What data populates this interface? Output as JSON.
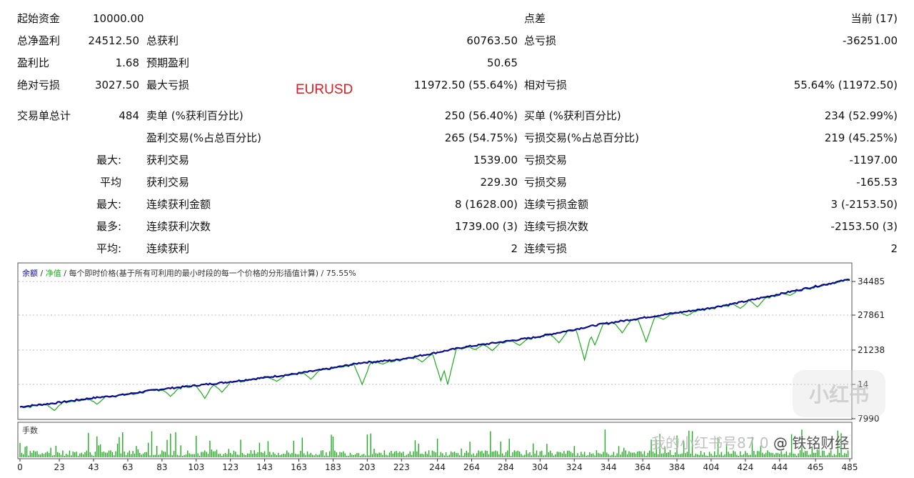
{
  "stats": {
    "initial_deposit": {
      "label": "起始资金",
      "value": "10000.00"
    },
    "spread": {
      "label": "点差",
      "value": "当前 (17)"
    },
    "total_net_profit": {
      "label": "总净盈利",
      "value": "24512.50"
    },
    "gross_profit": {
      "label": "总获利",
      "value": "60763.50"
    },
    "gross_loss": {
      "label": "总亏损",
      "value": "-36251.00"
    },
    "profit_factor": {
      "label": "盈利比",
      "value": "1.68"
    },
    "expected_payoff": {
      "label": "预期盈利",
      "value": "50.65"
    },
    "absolute_drawdown": {
      "label": "绝对亏损",
      "value": "3027.50"
    },
    "maximal_drawdown": {
      "label": "最大亏损",
      "value": "11972.50 (55.64%)"
    },
    "relative_drawdown": {
      "label": "相对亏损",
      "value": "55.64% (11972.50)"
    },
    "total_trades": {
      "label": "交易单总计",
      "value": "484"
    },
    "short_positions": {
      "label": "卖单 (%获利百分比)",
      "value": "250 (56.40%)"
    },
    "long_positions": {
      "label": "买单 (%获利百分比)",
      "value": "234 (52.99%)"
    },
    "profit_trades": {
      "label": "盈利交易(%占总百分比)",
      "value": "265 (54.75%)"
    },
    "loss_trades": {
      "label": "亏损交易(%占总百分比)",
      "value": "219 (45.25%)"
    },
    "largest": {
      "label": "最大:",
      "profit_label": "获利交易",
      "profit": "1539.00",
      "loss_label": "亏损交易",
      "loss": "-1197.00"
    },
    "average": {
      "label": "平均",
      "profit_label": "获利交易",
      "profit": "229.30",
      "loss_label": "亏损交易",
      "loss": "-165.53"
    },
    "max_consec": {
      "label": "最大:",
      "wins_label": "连续获利金额",
      "wins": "8 (1628.00)",
      "losses_label": "连续亏损金额",
      "losses": "3 (-2153.50)"
    },
    "maximal_consec": {
      "label": "最多:",
      "profit_label": "连续获利次数",
      "profit": "1739.00 (3)",
      "loss_label": "连续亏损次数",
      "loss": "-2153.50 (3)"
    },
    "avg_consec": {
      "label": "平均:",
      "wins_label": "连续获利",
      "wins": "2",
      "losses_label": "连续亏损",
      "losses": "2"
    }
  },
  "symbol": "EURUSD",
  "chart_data": [
    {
      "type": "line",
      "legend": {
        "balance": "余额",
        "sep1": "/",
        "equity": "净值",
        "sep2": "/",
        "desc": "每个即时价格(基于所有可利用的最小时段的每一个价格的分形插值计算)",
        "sep3": "/",
        "quality": "75.55%"
      },
      "y_ticks": [
        34485,
        27861,
        21238,
        "14",
        7990
      ],
      "ylim": [
        7990,
        36000
      ],
      "xlim": [
        0,
        485
      ],
      "colors": {
        "balance": "#0a0a8c",
        "equity": "#1faa1f"
      },
      "series": [
        {
          "name": "余额",
          "points": [
            [
              0,
              10000
            ],
            [
              20,
              10700
            ],
            [
              40,
              11600
            ],
            [
              60,
              12300
            ],
            [
              80,
              13300
            ],
            [
              100,
              14000
            ],
            [
              120,
              14700
            ],
            [
              140,
              15500
            ],
            [
              160,
              16300
            ],
            [
              180,
              17300
            ],
            [
              200,
              18500
            ],
            [
              220,
              19000
            ],
            [
              240,
              20200
            ],
            [
              260,
              21500
            ],
            [
              280,
              22400
            ],
            [
              300,
              23300
            ],
            [
              320,
              24600
            ],
            [
              340,
              25900
            ],
            [
              360,
              26900
            ],
            [
              380,
              27900
            ],
            [
              400,
              28800
            ],
            [
              420,
              30000
            ],
            [
              440,
              31400
            ],
            [
              460,
              32800
            ],
            [
              485,
              34500
            ]
          ]
        },
        {
          "name": "净值",
          "dips": [
            [
              20,
              9300
            ],
            [
              45,
              10500
            ],
            [
              88,
              12000
            ],
            [
              108,
              11600
            ],
            [
              118,
              12800
            ],
            [
              150,
              14900
            ],
            [
              170,
              15300
            ],
            [
              187,
              17600
            ],
            [
              200,
              14300
            ],
            [
              212,
              18200
            ],
            [
              235,
              18600
            ],
            [
              246,
              15000
            ],
            [
              250,
              14300
            ],
            [
              266,
              21000
            ],
            [
              276,
              20800
            ],
            [
              292,
              21800
            ],
            [
              315,
              22300
            ],
            [
              330,
              19000
            ],
            [
              336,
              21900
            ],
            [
              352,
              24200
            ],
            [
              366,
              22500
            ],
            [
              376,
              26800
            ],
            [
              390,
              27500
            ],
            [
              421,
              28900
            ],
            [
              431,
              29200
            ],
            [
              450,
              31400
            ]
          ]
        }
      ]
    },
    {
      "type": "bar",
      "title": "手数",
      "x_ticks": [
        0,
        23,
        43,
        63,
        83,
        103,
        123,
        143,
        163,
        183,
        203,
        223,
        244,
        264,
        284,
        304,
        324,
        344,
        364,
        384,
        404,
        424,
        444,
        465,
        485
      ]
    }
  ],
  "watermark": {
    "text": "我的小红书号87 0",
    "at": "@",
    "name": "铁铭财经",
    "logo": "小红书"
  }
}
